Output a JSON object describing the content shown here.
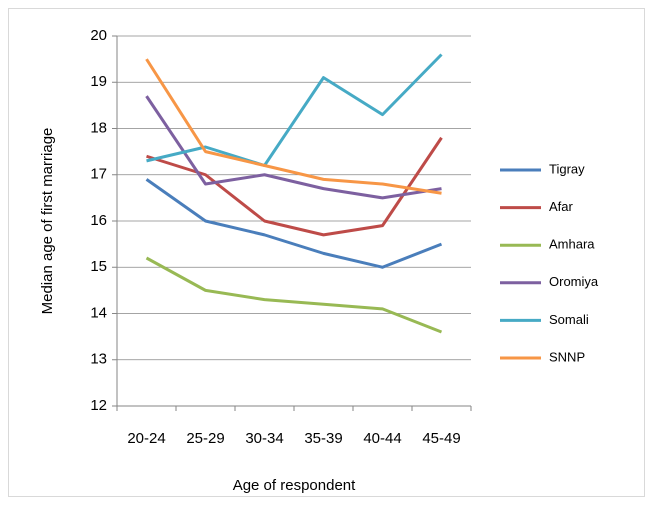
{
  "chart_data": {
    "type": "line",
    "categories": [
      "20-24",
      "25-29",
      "30-34",
      "35-39",
      "40-44",
      "45-49"
    ],
    "series": [
      {
        "name": "Tigray",
        "color": "#4a7ebb",
        "values": [
          16.9,
          16.0,
          15.7,
          15.3,
          15.0,
          15.5
        ]
      },
      {
        "name": "Afar",
        "color": "#be4b48",
        "values": [
          17.4,
          17.0,
          16.0,
          15.7,
          15.9,
          17.8
        ]
      },
      {
        "name": "Amhara",
        "color": "#98b954",
        "values": [
          15.2,
          14.5,
          14.3,
          14.2,
          14.1,
          13.6
        ]
      },
      {
        "name": "Oromiya",
        "color": "#7d60a0",
        "values": [
          18.7,
          16.8,
          17.0,
          16.7,
          16.5,
          16.7
        ]
      },
      {
        "name": "Somali",
        "color": "#46aac5",
        "values": [
          17.3,
          17.6,
          17.2,
          19.1,
          18.3,
          19.6
        ]
      },
      {
        "name": "SNNP",
        "color": "#f79646",
        "values": [
          19.5,
          17.5,
          17.2,
          16.9,
          16.8,
          16.6
        ]
      }
    ],
    "ylim": [
      12,
      20
    ],
    "yticks": [
      12,
      13,
      14,
      15,
      16,
      17,
      18,
      19,
      20
    ],
    "grid": true,
    "xlabel": "Age of respondent",
    "ylabel": "Median age of first marriage",
    "legend": "right"
  }
}
